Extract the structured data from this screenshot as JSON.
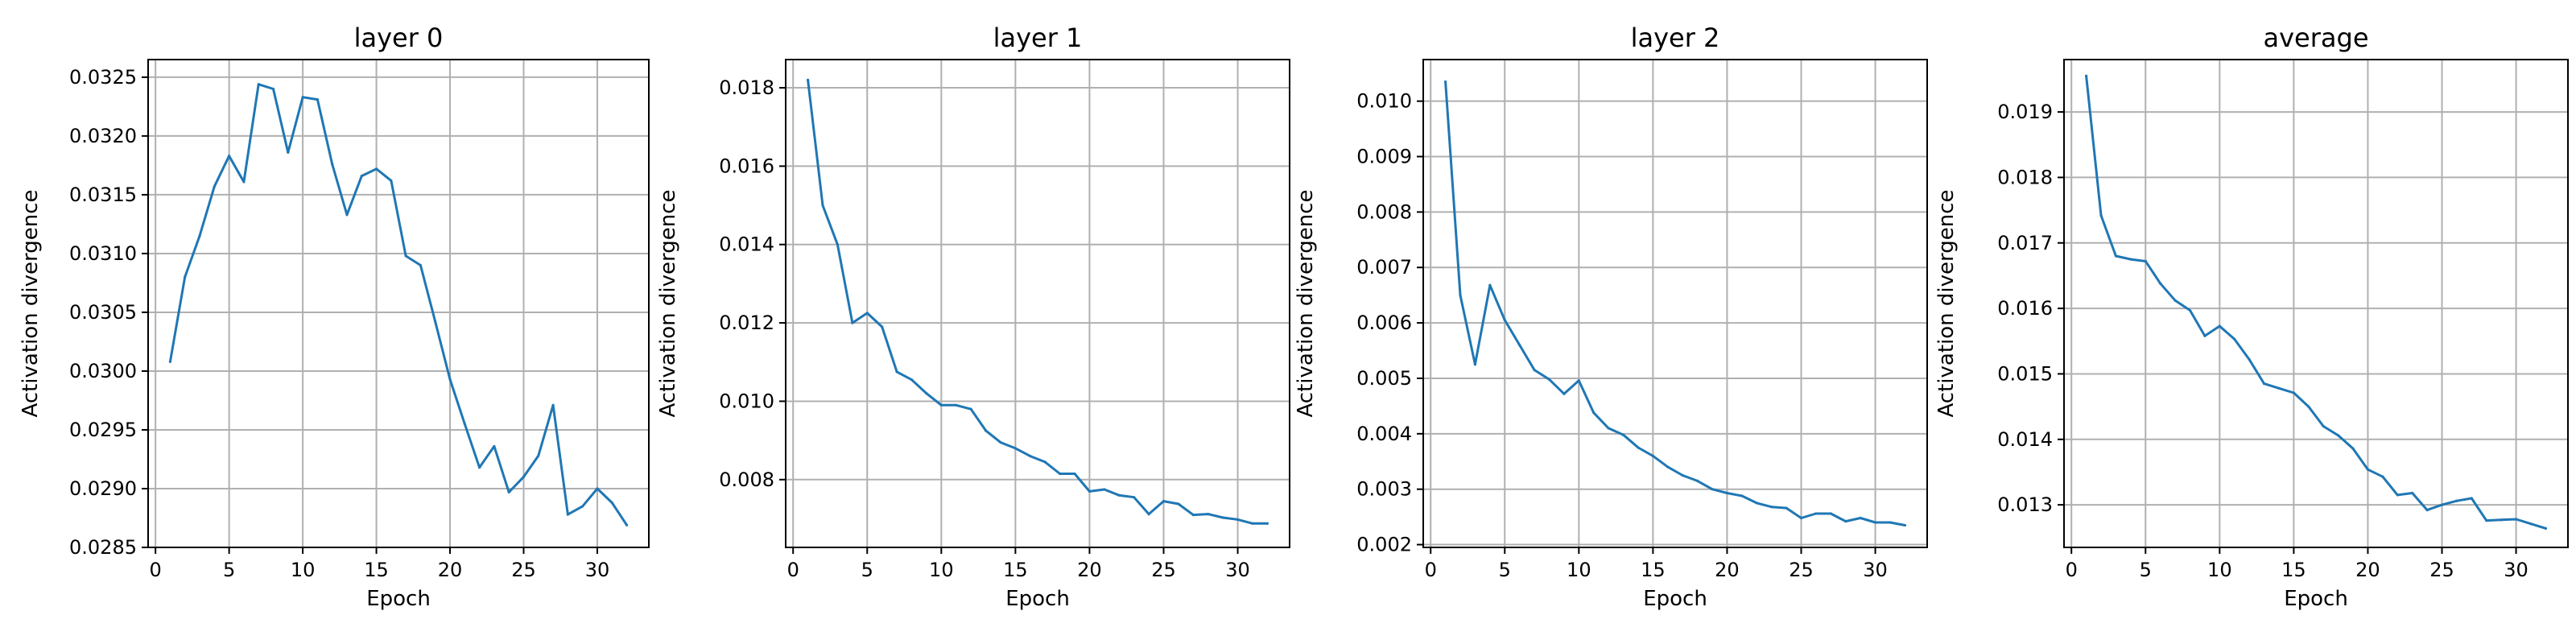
{
  "figure": {
    "type": "line",
    "line_color": "#1f77b4",
    "grid": true,
    "grid_color": "#b0b0b0"
  },
  "chart_data": [
    {
      "type": "line",
      "title": "layer 0",
      "xlabel": "Epoch",
      "ylabel": "Activation divergence",
      "xlim": [
        -0.5,
        33.5
      ],
      "ylim": [
        0.0285,
        0.03265
      ],
      "xticks": [
        0,
        5,
        10,
        15,
        20,
        25,
        30
      ],
      "yticks": [
        0.0285,
        0.029,
        0.0295,
        0.03,
        0.0305,
        0.031,
        0.0315,
        0.032,
        0.0325
      ],
      "ytick_labels": [
        "0.0285",
        "0.0290",
        "0.0295",
        "0.0300",
        "0.0305",
        "0.0310",
        "0.0315",
        "0.0320",
        "0.0325"
      ],
      "x": [
        1,
        2,
        3,
        4,
        5,
        6,
        7,
        8,
        9,
        10,
        11,
        12,
        13,
        14,
        15,
        16,
        17,
        18,
        19,
        20,
        21,
        22,
        23,
        24,
        25,
        26,
        27,
        28,
        29,
        30,
        31,
        32
      ],
      "y": [
        0.03008,
        0.0308,
        0.03115,
        0.03157,
        0.03183,
        0.03161,
        0.03244,
        0.0324,
        0.03186,
        0.03233,
        0.03231,
        0.03176,
        0.03133,
        0.03166,
        0.03172,
        0.03162,
        0.03098,
        0.0309,
        0.03042,
        0.02993,
        0.02955,
        0.02918,
        0.02936,
        0.02897,
        0.0291,
        0.02928,
        0.02971,
        0.02878,
        0.02885,
        0.029,
        0.02888,
        0.02869
      ]
    },
    {
      "type": "line",
      "title": "layer 1",
      "xlabel": "Epoch",
      "ylabel": "Activation divergence",
      "xlim": [
        -0.5,
        33.5
      ],
      "ylim": [
        0.00627,
        0.01872
      ],
      "xticks": [
        0,
        5,
        10,
        15,
        20,
        25,
        30
      ],
      "yticks": [
        0.008,
        0.01,
        0.012,
        0.014,
        0.016,
        0.018
      ],
      "ytick_labels": [
        "0.008",
        "0.010",
        "0.012",
        "0.014",
        "0.016",
        "0.018"
      ],
      "x": [
        1,
        2,
        3,
        4,
        5,
        6,
        7,
        8,
        9,
        10,
        11,
        12,
        13,
        14,
        15,
        16,
        17,
        18,
        19,
        20,
        21,
        22,
        23,
        24,
        25,
        26,
        27,
        28,
        29,
        30,
        31,
        32
      ],
      "y": [
        0.0182,
        0.015,
        0.014,
        0.012,
        0.01225,
        0.0119,
        0.01075,
        0.01055,
        0.0102,
        0.0099,
        0.0099,
        0.0098,
        0.00925,
        0.00895,
        0.0088,
        0.0086,
        0.00845,
        0.00815,
        0.00815,
        0.0077,
        0.00775,
        0.0076,
        0.00755,
        0.00712,
        0.00745,
        0.00738,
        0.0071,
        0.00712,
        0.00703,
        0.00698,
        0.00688,
        0.00688
      ]
    },
    {
      "type": "line",
      "title": "layer 2",
      "xlabel": "Epoch",
      "ylabel": "Activation divergence",
      "xlim": [
        -0.5,
        33.5
      ],
      "ylim": [
        0.00195,
        0.01075
      ],
      "xticks": [
        0,
        5,
        10,
        15,
        20,
        25,
        30
      ],
      "yticks": [
        0.002,
        0.003,
        0.004,
        0.005,
        0.006,
        0.007,
        0.008,
        0.009,
        0.01
      ],
      "ytick_labels": [
        "0.002",
        "0.003",
        "0.004",
        "0.005",
        "0.006",
        "0.007",
        "0.008",
        "0.009",
        "0.010"
      ],
      "x": [
        1,
        2,
        3,
        4,
        5,
        6,
        7,
        8,
        9,
        10,
        11,
        12,
        13,
        14,
        15,
        16,
        17,
        18,
        19,
        20,
        21,
        22,
        23,
        24,
        25,
        26,
        27,
        28,
        29,
        30,
        31,
        32
      ],
      "y": [
        0.01035,
        0.0065,
        0.00525,
        0.00668,
        0.00605,
        0.0056,
        0.00515,
        0.00498,
        0.00472,
        0.00496,
        0.00438,
        0.0041,
        0.00398,
        0.00375,
        0.0036,
        0.0034,
        0.00325,
        0.00315,
        0.003,
        0.00293,
        0.00288,
        0.00275,
        0.00268,
        0.00266,
        0.00248,
        0.00256,
        0.00256,
        0.00242,
        0.00248,
        0.0024,
        0.0024,
        0.00235
      ]
    },
    {
      "type": "line",
      "title": "average",
      "xlabel": "Epoch",
      "ylabel": "Activation divergence",
      "xlim": [
        -0.5,
        33.5
      ],
      "ylim": [
        0.01235,
        0.0198
      ],
      "xticks": [
        0,
        5,
        10,
        15,
        20,
        25,
        30
      ],
      "yticks": [
        0.013,
        0.014,
        0.015,
        0.016,
        0.017,
        0.018,
        0.019
      ],
      "ytick_labels": [
        "0.013",
        "0.014",
        "0.015",
        "0.016",
        "0.017",
        "0.018",
        "0.019"
      ],
      "x": [
        1,
        2,
        3,
        4,
        5,
        6,
        7,
        8,
        9,
        10,
        11,
        12,
        13,
        14,
        15,
        16,
        17,
        18,
        19,
        20,
        21,
        22,
        23,
        24,
        25,
        26,
        27,
        28,
        29,
        30,
        31,
        32
      ],
      "y": [
        0.01955,
        0.01742,
        0.0168,
        0.01675,
        0.01672,
        0.01638,
        0.01612,
        0.01597,
        0.01558,
        0.01573,
        0.01553,
        0.01522,
        0.01485,
        0.01478,
        0.01471,
        0.0145,
        0.0142,
        0.01406,
        0.01386,
        0.01354,
        0.01343,
        0.01315,
        0.01318,
        0.01292,
        0.013,
        0.01306,
        0.0131,
        0.01276,
        0.01277,
        0.01278,
        0.01271,
        0.01264
      ]
    }
  ]
}
